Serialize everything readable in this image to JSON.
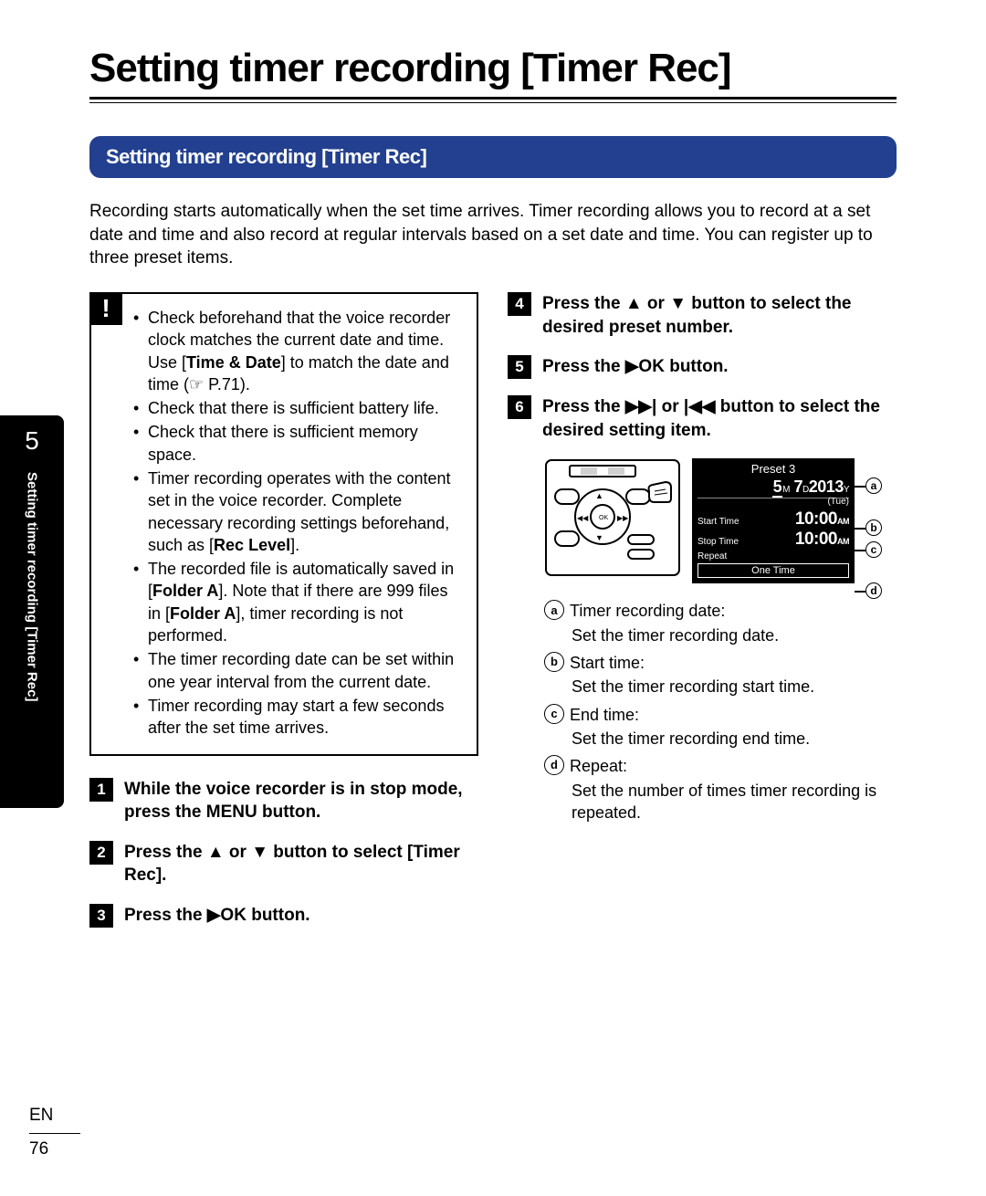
{
  "title": "Setting timer recording [Timer Rec]",
  "section_heading": "Setting timer recording [Timer Rec]",
  "intro": "Recording starts automatically when the set time arrives. Timer recording allows you to record at a set date and time and also record at regular intervals based on a set date and time. You can register up to three preset items.",
  "note": {
    "items": [
      {
        "pre": "Check beforehand that the voice recorder clock matches the current date and time. Use [",
        "b1": "Time & Date",
        "mid": "] to match the date and time (",
        "hand": "☞",
        "post": " P.71)."
      },
      {
        "pre": "Check that there is sufficient battery life."
      },
      {
        "pre": "Check that there is sufficient memory space."
      },
      {
        "pre": "Timer recording operates with the content set in the voice recorder. Complete necessary recording settings beforehand, such as [",
        "b1": "Rec Level",
        "post": "]."
      },
      {
        "pre": "The recorded file is automatically saved in [",
        "b1": "Folder A",
        "mid": "]. Note that if there are 999 files in [",
        "b2": "Folder A",
        "post": "], timer recording is not performed."
      },
      {
        "pre": "The timer recording date can be set within one year interval from the current date."
      },
      {
        "pre": "Timer recording may start a few seconds after the set time arrives."
      }
    ]
  },
  "steps_left": [
    {
      "n": "1",
      "pre": "While the voice recorder is in stop mode, press the ",
      "b1": "MENU",
      "post": " button."
    },
    {
      "n": "2",
      "pre": "Press the ",
      "sym1": "▲",
      "mid": " or ",
      "sym2": "▼",
      "mid2": " button to select [",
      "b1": "Timer Rec",
      "post": "]."
    },
    {
      "n": "3",
      "pre": "Press the ",
      "sym1": "▶",
      "b1": "OK",
      "post": " button."
    }
  ],
  "steps_right": [
    {
      "n": "4",
      "pre": "Press the ",
      "sym1": "▲",
      "mid": " or ",
      "sym2": "▼",
      "post": " button to select the desired preset number."
    },
    {
      "n": "5",
      "pre": "Press the ",
      "sym1": "▶",
      "b1": "OK",
      "post": " button."
    },
    {
      "n": "6",
      "pre": "Press the ",
      "sym1": "▶▶|",
      "mid": " or ",
      "sym2": "|◀◀",
      "post": " button to select the desired setting item."
    }
  ],
  "lcd": {
    "title": "Preset 3",
    "date_m": "5",
    "date_d": "7",
    "date_y": "2013",
    "day": "(Tue)",
    "start_label": "Start Time",
    "start_val": "10:00",
    "start_ampm": "AM",
    "stop_label": "Stop Time",
    "stop_val": "10:00",
    "stop_ampm": "AM",
    "repeat_label": "Repeat",
    "repeat_val": "One Time"
  },
  "callouts": {
    "a": "a",
    "b": "b",
    "c": "c",
    "d": "d"
  },
  "legend": [
    {
      "k": "a",
      "t": "Timer recording date:",
      "d": "Set the timer recording date."
    },
    {
      "k": "b",
      "t": "Start time:",
      "d": "Set the timer recording start time."
    },
    {
      "k": "c",
      "t": "End time:",
      "d": "Set the timer recording end time."
    },
    {
      "k": "d",
      "t": "Repeat:",
      "d": "Set the number of times timer recording is repeated."
    }
  ],
  "sidebar": {
    "chapter": "5",
    "text": "Setting timer recording [Timer Rec]"
  },
  "footer": {
    "lang": "EN",
    "page": "76"
  }
}
